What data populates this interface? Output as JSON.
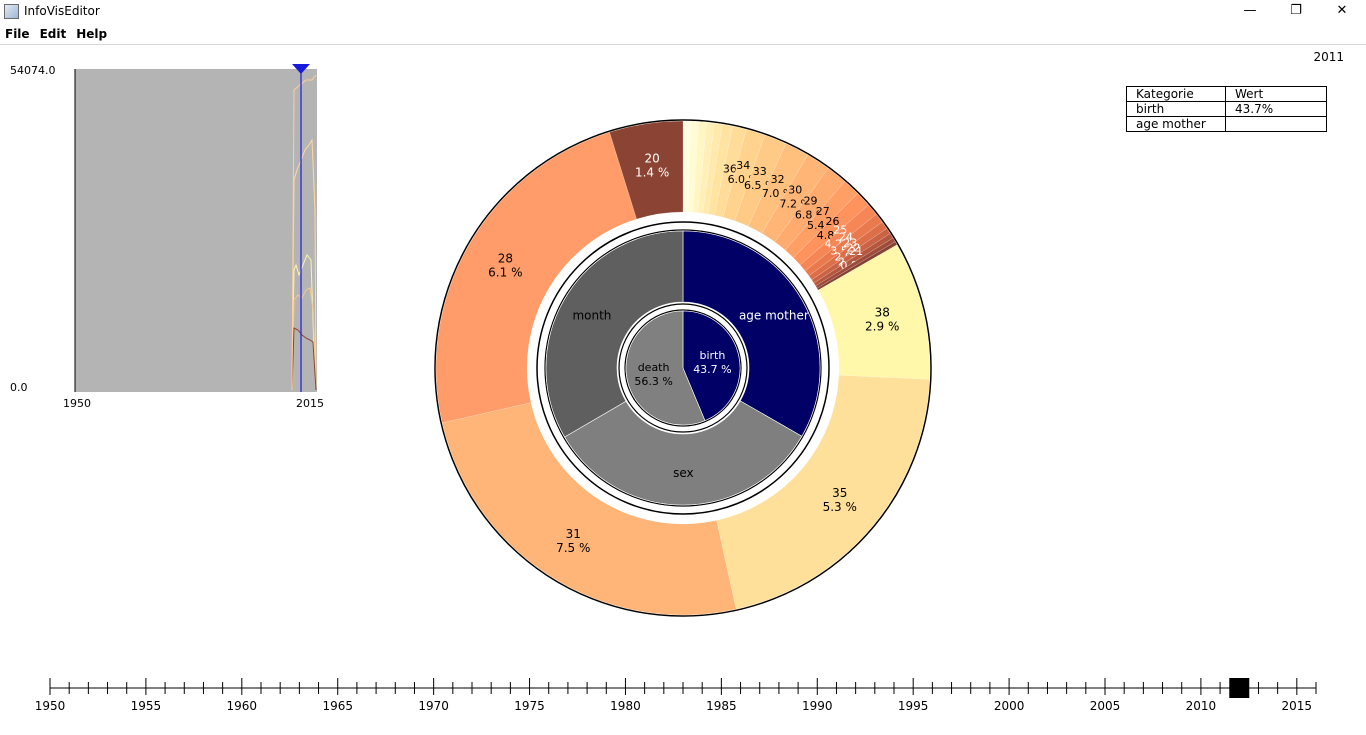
{
  "window": {
    "title": "InfoVisEditor",
    "minimize": "—",
    "maximize": "❐",
    "close": "✕"
  },
  "menu": [
    "File",
    "Edit",
    "Help"
  ],
  "current_year": "2011",
  "table": {
    "headers": [
      "Kategorie",
      "Wert"
    ],
    "rows": [
      [
        "birth",
        "43.7%"
      ],
      [
        "age mother",
        ""
      ]
    ]
  },
  "minichart": {
    "y_max_label": "54074.0",
    "y_min_label": "0.0",
    "x_start_label": "1950",
    "x_end_label": "2015",
    "colors": {
      "background": "#b4b4b4",
      "marker": "#1a1adc"
    }
  },
  "timeline": {
    "labels": [
      "1950",
      "1955",
      "1960",
      "1965",
      "1970",
      "1975",
      "1980",
      "1985",
      "1990",
      "1995",
      "2000",
      "2005",
      "2010",
      "2015"
    ],
    "thumb_value": 2012
  },
  "chart_data": {
    "type": "sunburst",
    "inner_ring": [
      {
        "name": "birth",
        "value_label": "43.7 %",
        "share": 0.437,
        "color": "#000066"
      },
      {
        "name": "death",
        "value_label": "56.3 %",
        "share": 0.563,
        "color": "#808080"
      }
    ],
    "middle_ring": [
      {
        "name": "age mother",
        "share": 0.333,
        "color": "#000066"
      },
      {
        "name": "sex",
        "share": 0.333,
        "color": "#7f7f7f"
      },
      {
        "name": "month",
        "share": 0.334,
        "color": "#5f5f5f"
      }
    ],
    "outer_ring": [
      {
        "name": "",
        "value_label": "",
        "share": 0.0045,
        "color": "#fffee0"
      },
      {
        "name": "",
        "value_label": "",
        "share": 0.0045,
        "color": "#fffbd2"
      },
      {
        "name": "",
        "value_label": "",
        "share": 0.0045,
        "color": "#fff6c4"
      },
      {
        "name": "",
        "value_label": "",
        "share": 0.0045,
        "color": "#fff0b8"
      },
      {
        "name": "",
        "value_label": "",
        "share": 0.0045,
        "color": "#ffe9ab"
      },
      {
        "name": "",
        "value_label": "",
        "share": 0.006,
        "color": "#ffe3a0"
      },
      {
        "name": "36",
        "value_label": "",
        "share": 0.008,
        "color": "#ffdc98"
      },
      {
        "name": "34",
        "value_label": "6.0 %",
        "share": 0.011,
        "color": "#ffd38e"
      },
      {
        "name": "33",
        "value_label": "6.5 %",
        "share": 0.013,
        "color": "#ffca85"
      },
      {
        "name": "32",
        "value_label": "7.0 %",
        "share": 0.014,
        "color": "#ffc07e"
      },
      {
        "name": "30",
        "value_label": "7.2 %",
        "share": 0.014,
        "color": "#ffb576"
      },
      {
        "name": "29",
        "value_label": "6.8 %",
        "share": 0.012,
        "color": "#ffaa6e"
      },
      {
        "name": "27",
        "value_label": "5.4 %",
        "share": 0.01,
        "color": "#ff9f66"
      },
      {
        "name": "26",
        "value_label": "4.8 %",
        "share": 0.009,
        "color": "#ff935e"
      },
      {
        "name": "25",
        "value_label": "4.2 %",
        "share": 0.007,
        "color": "#f78656"
      },
      {
        "name": "24",
        "value_label": "3.5 %",
        "share": 0.0055,
        "color": "#ea7a4e"
      },
      {
        "name": "23",
        "value_label": "2.9 %",
        "share": 0.0045,
        "color": "#dc6f48"
      },
      {
        "name": "22",
        "value_label": "2.4 %",
        "share": 0.0035,
        "color": "#c96343"
      },
      {
        "name": "21",
        "value_label": "0.8 %",
        "share": 0.003,
        "color": "#b4573e"
      },
      {
        "name": "",
        "value_label": "",
        "share": 0.0025,
        "color": "#9e4c39"
      },
      {
        "name": "",
        "value_label": "",
        "share": 0.002,
        "color": "#874235"
      },
      {
        "name": "38",
        "value_label": "2.9 %",
        "share": 0.08,
        "color": "#fff8aa"
      },
      {
        "name": "35",
        "value_label": "5.3 %",
        "share": 0.184,
        "color": "#ffe09a"
      },
      {
        "name": "31",
        "value_label": "7.5 %",
        "share": 0.22,
        "color": "#ffb577"
      },
      {
        "name": "28",
        "value_label": "6.1 %",
        "share": 0.21,
        "color": "#ff9c6a"
      },
      {
        "name": "20",
        "value_label": "1.4 %",
        "share": 0.0425,
        "color": "#8b4433"
      }
    ]
  }
}
